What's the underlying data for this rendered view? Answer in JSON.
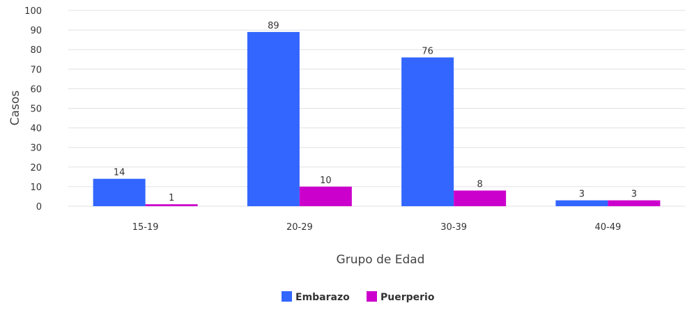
{
  "chart_data": {
    "type": "bar",
    "categories": [
      "15-19",
      "20-29",
      "30-39",
      "40-49"
    ],
    "series": [
      {
        "name": "Embarazo",
        "values": [
          14,
          89,
          76,
          3
        ],
        "color": "#3366ff"
      },
      {
        "name": "Puerperio",
        "values": [
          1,
          10,
          8,
          3
        ],
        "color": "#cc00cc"
      }
    ],
    "data_labels": {
      "Embarazo": [
        "14",
        "89",
        "76",
        "3"
      ],
      "Puerperio": [
        "1",
        "10",
        "8",
        "3"
      ]
    },
    "xlabel": "Grupo de Edad",
    "ylabel": "Casos",
    "ylim": [
      0,
      100
    ],
    "yticks": [
      "0",
      "10",
      "20",
      "30",
      "40",
      "50",
      "60",
      "70",
      "80",
      "90",
      "100"
    ],
    "grid": true,
    "legend_position": "bottom-center"
  }
}
